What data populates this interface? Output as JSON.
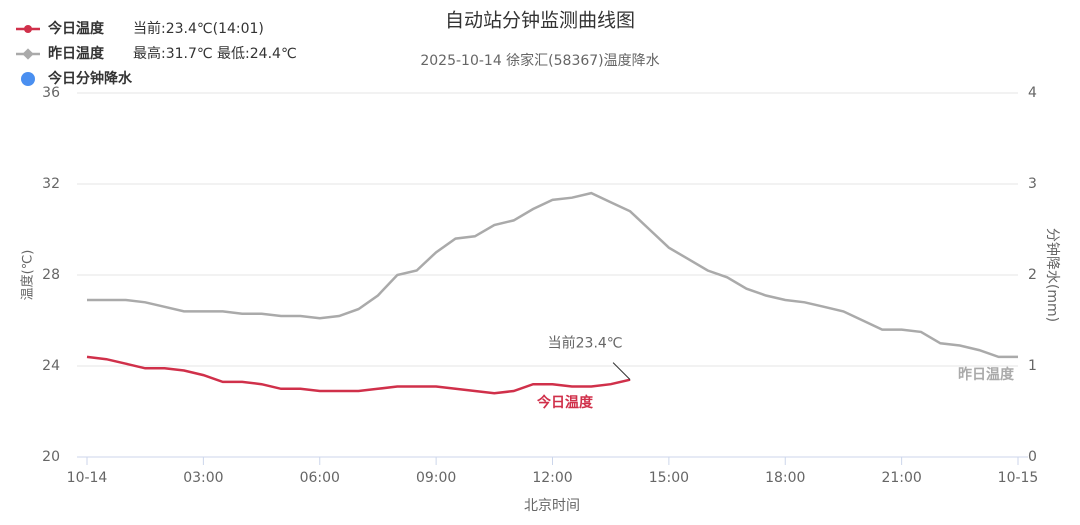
{
  "chart_data": {
    "type": "line",
    "title": "自动站分钟监测曲线图",
    "subtitle": "2025-10-14 徐家汇(58367)温度降水",
    "xlabel": "北京时间",
    "ylabel": "温度(℃)",
    "y2label": "分钟降水(mm)",
    "x": [
      0,
      0.5,
      1,
      1.5,
      2,
      2.5,
      3,
      3.5,
      4,
      4.5,
      5,
      5.5,
      6,
      6.5,
      7,
      7.5,
      8,
      8.5,
      9,
      9.5,
      10,
      10.5,
      11,
      11.5,
      12,
      12.5,
      13,
      13.5,
      14,
      14.5,
      15,
      15.5,
      16,
      16.5,
      17,
      17.5,
      18,
      18.5,
      19,
      19.5,
      20,
      20.5,
      21,
      21.5,
      22,
      22.5,
      23,
      23.5,
      24
    ],
    "series": [
      {
        "name": "今日温度",
        "color": "#d0304a",
        "values": [
          24.4,
          24.3,
          24.1,
          23.9,
          23.9,
          23.8,
          23.6,
          23.3,
          23.3,
          23.2,
          23.0,
          23.0,
          22.9,
          22.9,
          22.9,
          23.0,
          23.1,
          23.1,
          23.1,
          23.0,
          22.9,
          22.8,
          22.9,
          23.2,
          23.2,
          23.1,
          23.1,
          23.2,
          23.4,
          null,
          null,
          null,
          null,
          null,
          null,
          null,
          null,
          null,
          null,
          null,
          null,
          null,
          null,
          null,
          null,
          null,
          null,
          null,
          null
        ]
      },
      {
        "name": "昨日温度",
        "color": "#aaaaaa",
        "values": [
          26.9,
          26.9,
          26.9,
          26.8,
          26.6,
          26.4,
          26.4,
          26.4,
          26.3,
          26.3,
          26.2,
          26.2,
          26.1,
          26.2,
          26.5,
          27.1,
          28.0,
          28.2,
          29.0,
          29.6,
          29.7,
          30.2,
          30.4,
          30.9,
          31.3,
          31.4,
          31.6,
          31.2,
          30.8,
          30.0,
          29.2,
          28.7,
          28.2,
          27.9,
          27.4,
          27.1,
          26.9,
          26.8,
          26.6,
          26.4,
          26.0,
          25.6,
          25.6,
          25.5,
          25.0,
          24.9,
          24.7,
          24.4,
          24.4
        ]
      },
      {
        "name": "今日分钟降水",
        "color": "#4a8ff0",
        "axis": "y2",
        "values": [
          null,
          null,
          null,
          null,
          null,
          null,
          null,
          null,
          null,
          null,
          null,
          null,
          null,
          null,
          null,
          null,
          null,
          null,
          null,
          null,
          null,
          null,
          null,
          null,
          null,
          null,
          null,
          null,
          null,
          null,
          null,
          null,
          null,
          null,
          null,
          null,
          null,
          null,
          null,
          null,
          null,
          null,
          null,
          null,
          null,
          null,
          null,
          null,
          null
        ]
      }
    ],
    "legend_notes": [
      "当前:23.4℃(14:01)",
      "最高:31.7℃ 最低:24.4℃"
    ],
    "annotations": {
      "current": "当前23.4℃",
      "today_label": "今日温度",
      "yesterday_label": "昨日温度"
    },
    "xlim": [
      0,
      24
    ],
    "xticks": [
      {
        "value": 0,
        "label": "10-14"
      },
      {
        "value": 3,
        "label": "03:00"
      },
      {
        "value": 6,
        "label": "06:00"
      },
      {
        "value": 9,
        "label": "09:00"
      },
      {
        "value": 12,
        "label": "12:00"
      },
      {
        "value": 15,
        "label": "15:00"
      },
      {
        "value": 18,
        "label": "18:00"
      },
      {
        "value": 21,
        "label": "21:00"
      },
      {
        "value": 24,
        "label": "10-15"
      }
    ],
    "ylim": [
      20,
      36
    ],
    "yticks": [
      20,
      24,
      28,
      32,
      36
    ],
    "y2lim": [
      0,
      4
    ],
    "y2ticks": [
      0,
      1,
      2,
      3,
      4
    ],
    "grid": true
  }
}
